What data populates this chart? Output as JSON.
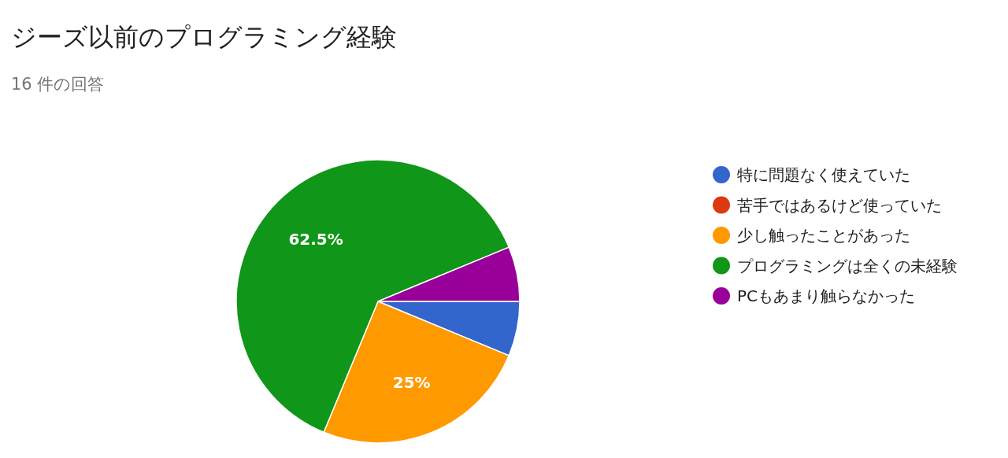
{
  "chart_data": {
    "type": "pie",
    "title": "ジーズ以前のプログラミング経験",
    "subtitle": "16 件の回答",
    "categories": [
      "特に問題なく使えていた",
      "苦手ではあるけど使っていた",
      "少し触ったことがあった",
      "プログラミングは全くの未経験",
      "PCもあまり触らなかった"
    ],
    "values": [
      6.25,
      0,
      25,
      62.5,
      6.25
    ],
    "colors": [
      "#3366cc",
      "#dc3912",
      "#ff9900",
      "#109618",
      "#990099"
    ],
    "value_labels": [
      null,
      null,
      "25%",
      "62.5%",
      null
    ],
    "legend": "right"
  }
}
